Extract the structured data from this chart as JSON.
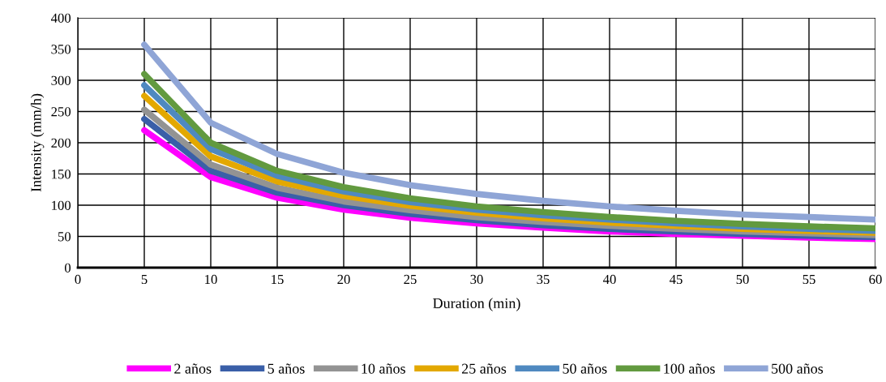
{
  "chart_data": {
    "type": "line",
    "xlabel": "Duration (min)",
    "ylabel": "Intensity (mm/h)",
    "x": [
      5,
      10,
      15,
      20,
      25,
      30,
      35,
      40,
      45,
      50,
      55,
      60
    ],
    "xlim": [
      0,
      60
    ],
    "xticks": [
      0,
      5,
      10,
      15,
      20,
      25,
      30,
      35,
      40,
      45,
      50,
      55,
      60
    ],
    "ylim": [
      0,
      400
    ],
    "yticks": [
      0,
      50,
      100,
      150,
      200,
      250,
      300,
      350,
      400
    ],
    "grid": true,
    "legend": "bottom",
    "marker": "none",
    "line_style": "solid",
    "series": [
      {
        "name": "2 años",
        "color": "#ff00ff",
        "values": [
          220,
          145,
          112,
          93,
          80,
          71,
          64,
          58,
          54,
          51,
          48,
          46
        ]
      },
      {
        "name": "5 años",
        "color": "#3a5fa8",
        "values": [
          238,
          155,
          120,
          100,
          86,
          76,
          68,
          62,
          58,
          54,
          51,
          49
        ]
      },
      {
        "name": "10 años",
        "color": "#939393",
        "values": [
          253,
          165,
          128,
          106,
          92,
          81,
          73,
          67,
          62,
          58,
          55,
          52
        ]
      },
      {
        "name": "25 años",
        "color": "#e3a800",
        "values": [
          275,
          178,
          138,
          115,
          99,
          88,
          79,
          72,
          67,
          62,
          59,
          56
        ]
      },
      {
        "name": "50 años",
        "color": "#4f89c0",
        "values": [
          292,
          190,
          147,
          122,
          105,
          93,
          84,
          77,
          71,
          66,
          62,
          59
        ]
      },
      {
        "name": "100 años",
        "color": "#629a3f",
        "values": [
          310,
          200,
          155,
          129,
          111,
          98,
          89,
          81,
          75,
          70,
          66,
          63
        ]
      },
      {
        "name": "500 años",
        "color": "#8fa5d6",
        "values": [
          357,
          232,
          182,
          152,
          132,
          118,
          107,
          98,
          91,
          85,
          81,
          77
        ]
      }
    ]
  }
}
